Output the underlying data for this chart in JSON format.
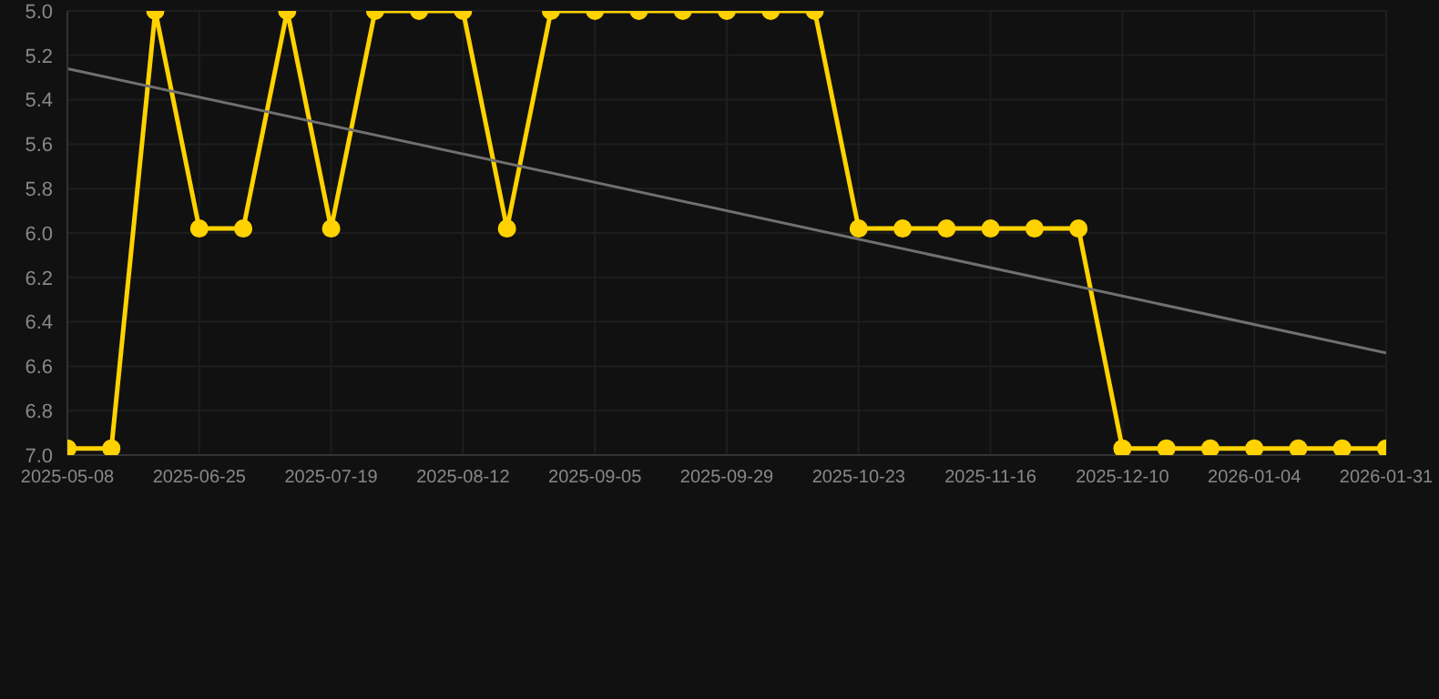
{
  "chart_data": {
    "type": "line",
    "categories": [
      "2025-05-08",
      null,
      null,
      "2025-06-25",
      null,
      null,
      "2025-07-19",
      null,
      null,
      "2025-08-12",
      null,
      null,
      "2025-09-05",
      null,
      null,
      "2025-09-29",
      null,
      null,
      "2025-10-23",
      null,
      null,
      "2025-11-16",
      null,
      null,
      "2025-12-10",
      null,
      null,
      "2026-01-04",
      null,
      null,
      "2026-01-31"
    ],
    "series": [
      {
        "color": "#ffd200",
        "marker": "circle",
        "values": [
          6.97,
          6.97,
          5,
          5.98,
          5.98,
          5,
          5.98,
          5,
          5,
          5,
          5.98,
          5,
          5,
          5,
          5,
          5,
          5,
          5,
          5.98,
          5.98,
          5.98,
          5.98,
          5.98,
          5.98,
          6.97,
          6.97,
          6.97,
          6.97,
          6.97,
          6.97,
          6.97
        ]
      },
      {
        "color": "#707070",
        "marker": "none",
        "values": [
          5.26,
          null,
          null,
          null,
          null,
          null,
          null,
          null,
          null,
          null,
          null,
          null,
          null,
          null,
          null,
          null,
          null,
          null,
          null,
          null,
          null,
          null,
          null,
          null,
          null,
          null,
          null,
          null,
          null,
          null,
          6.54
        ]
      }
    ],
    "ylim": [
      7,
      5
    ],
    "yticks": [
      {
        "value": 5,
        "label": "5.0"
      },
      5.2,
      5.4,
      5.6,
      5.8,
      {
        "value": 6,
        "label": "6.0"
      },
      6.2,
      6.4,
      6.6,
      6.8,
      {
        "value": 7,
        "label": "7.0"
      }
    ],
    "grid": true,
    "legend": false
  }
}
